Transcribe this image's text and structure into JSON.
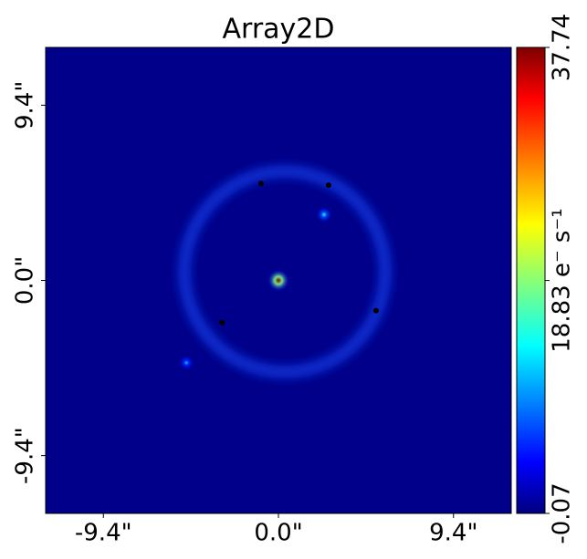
{
  "chart_data": {
    "type": "image",
    "title": "Array2D",
    "cmap": "jet",
    "xlim": [
      -12.5,
      12.5
    ],
    "ylim": [
      -12.5,
      12.5
    ],
    "xticks": [
      {
        "value": -9.4,
        "label": "-9.4\""
      },
      {
        "value": 0.0,
        "label": "0.0\""
      },
      {
        "value": 9.4,
        "label": "9.4\""
      }
    ],
    "yticks": [
      {
        "value": -9.4,
        "label": "-9.4\""
      },
      {
        "value": 0.0,
        "label": "0.0\""
      },
      {
        "value": 9.4,
        "label": "9.4\""
      }
    ],
    "clim": [
      -0.07,
      37.74
    ],
    "cticks": [
      -0.07,
      {
        "value": 18.83,
        "label": "18.83 e⁻ s⁻¹"
      },
      37.74
    ],
    "sources": {
      "x": [
        0.0,
        2.45,
        -4.94
      ],
      "y": [
        0.0,
        3.53,
        -4.42
      ],
      "values": [
        37.74,
        15,
        12
      ]
    },
    "points": {
      "x": [
        -0.93,
        2.69,
        5.24,
        -3.03
      ],
      "y": [
        5.2,
        5.11,
        -1.62,
        -2.26
      ]
    }
  }
}
